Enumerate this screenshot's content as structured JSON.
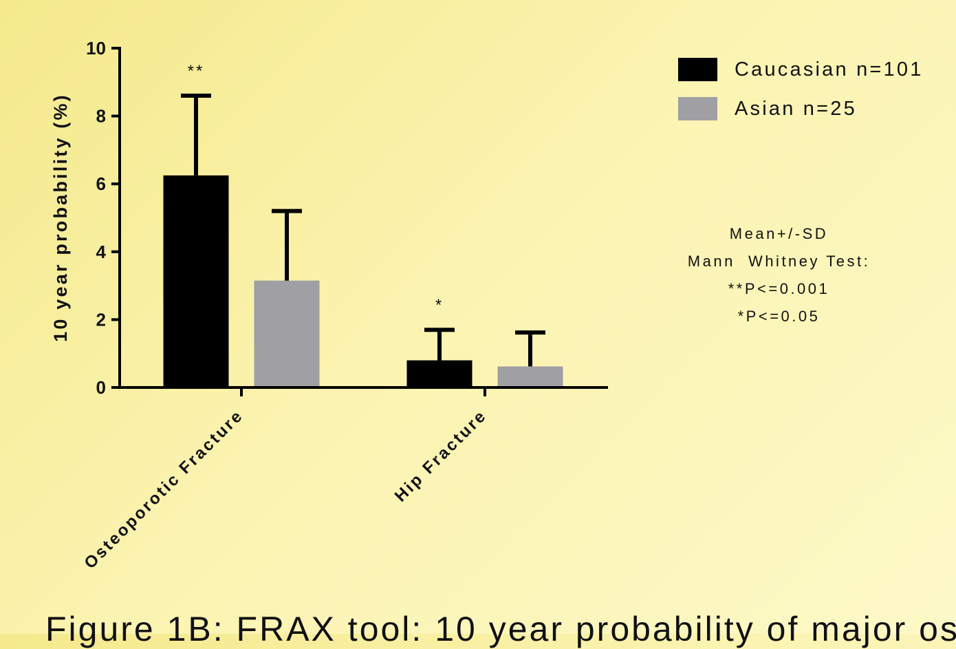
{
  "chart_data": {
    "type": "bar",
    "title": "",
    "xlabel": "",
    "ylabel": "10 year probability (%)",
    "ylim": [
      0,
      10
    ],
    "yticks": [
      0,
      2,
      4,
      6,
      8,
      10
    ],
    "categories": [
      "Osteoporotic Fracture",
      "Hip Fracture"
    ],
    "series": [
      {
        "name": "Caucasian n=101",
        "color": "#000000",
        "values": [
          6.25,
          0.8
        ],
        "sd": [
          2.35,
          0.9
        ],
        "annotations": [
          "**",
          "*"
        ]
      },
      {
        "name": "Asian n=25",
        "color": "#a09fa4",
        "values": [
          3.15,
          0.62
        ],
        "sd": [
          2.05,
          1.0
        ],
        "annotations": [
          "",
          ""
        ]
      }
    ],
    "legend_position": "top-right",
    "grid": false
  },
  "notes": [
    "Mean+/-SD",
    "Mann  Whitney Test:",
    "**P<=0.001",
    "*P<=0.05"
  ],
  "caption": "Figure 1B: FRAX tool: 10 year probability of major os"
}
